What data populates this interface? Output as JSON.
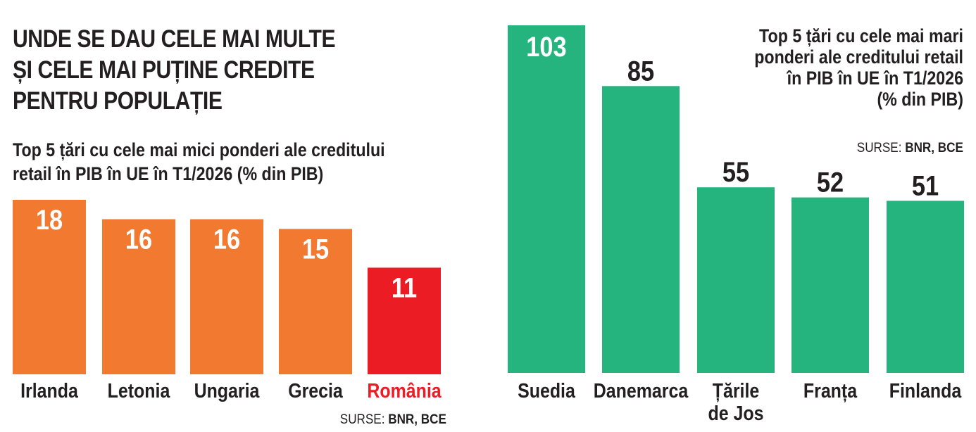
{
  "headline": [
    "UNDE SE DAU CELE MAI MULTE",
    "ȘI CELE MAI PUȚINE CREDITE",
    "PENTRU POPULAȚIE"
  ],
  "colors": {
    "orange": "#f27930",
    "red": "#ec1c24",
    "green": "#25b37e",
    "text": "#231f20"
  },
  "chart_data": [
    {
      "type": "bar",
      "title_lines": [
        "Top 5 țări cu cele mai mici  ponderi ale creditului",
        "retail în PIB în UE în T1/2026 (% din PIB)"
      ],
      "categories": [
        "Irlanda",
        "Letonia",
        "Ungaria",
        "Grecia",
        "România"
      ],
      "values": [
        18,
        16,
        16,
        15,
        11
      ],
      "highlight": "România",
      "value_labels": [
        "18",
        "16",
        "16",
        "15",
        "11"
      ],
      "source_prefix": "SURSE: ",
      "source_bold": "BNR, BCE",
      "ylim": [
        0,
        18
      ],
      "value_label_position": "inside"
    },
    {
      "type": "bar",
      "title_lines": [
        "Top 5 țări cu cele mai mari",
        "ponderi ale creditului retail",
        "în PIB în UE în T1/2026",
        "(% din PIB)"
      ],
      "categories": [
        "Suedia",
        "Danemarca",
        "Țările de Jos",
        "Franța",
        "Finlanda"
      ],
      "category_lines": [
        [
          "Suedia"
        ],
        [
          "Danemarca"
        ],
        [
          "Țările",
          "de Jos"
        ],
        [
          "Franța"
        ],
        [
          "Finlanda"
        ]
      ],
      "values": [
        103,
        85,
        55,
        52,
        51
      ],
      "value_labels": [
        "103",
        "85",
        "55",
        "52",
        "51"
      ],
      "source_prefix": "SURSE: ",
      "source_bold": "BNR, BCE",
      "ylim": [
        0,
        103
      ],
      "value_label_position": "inside for first bar, above for others"
    }
  ]
}
